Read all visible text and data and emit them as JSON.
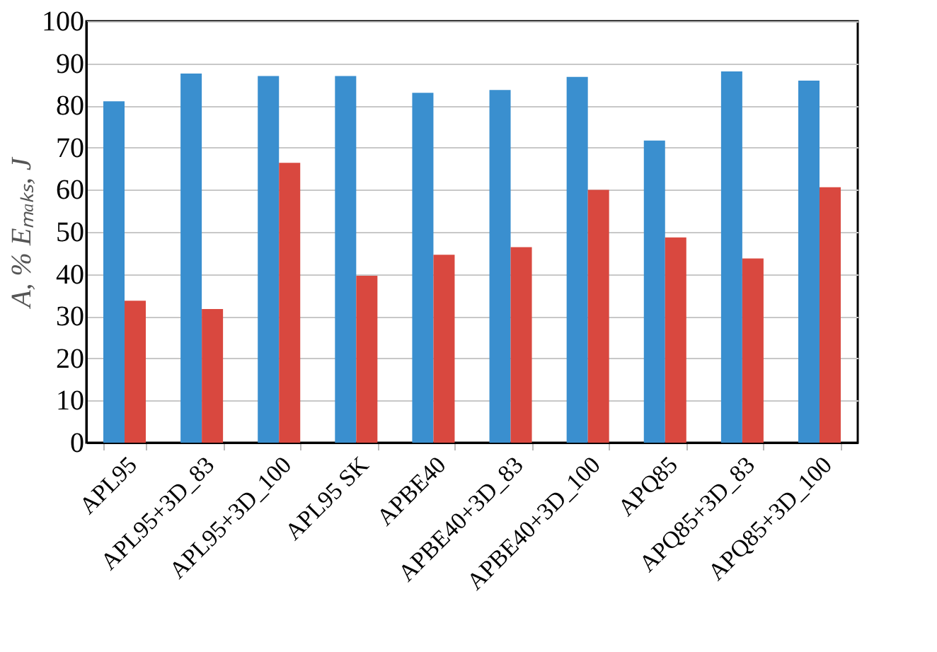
{
  "chart_data": {
    "type": "bar",
    "ylabel": "A, %   Eₘₐₖₛ, J",
    "categories": [
      "APL95",
      "APL95+3D_83",
      "APL95+3D_100",
      "APL95 SK",
      "APBE40",
      "APBE40+3D_83",
      "APBE40+3D_100",
      "APQ85",
      "APQ85+3D_83",
      "APQ85+3D_100"
    ],
    "series": [
      {
        "color": "#3a8fcf",
        "values": [
          81,
          87.6,
          87,
          87,
          83,
          83.7,
          86.8,
          71.7,
          88.1,
          85.9
        ]
      },
      {
        "color": "#d9483f",
        "values": [
          33.7,
          31.7,
          66.4,
          39.6,
          44.6,
          46.4,
          60,
          48.7,
          43.7,
          60.6
        ]
      }
    ],
    "ylim": [
      0,
      100
    ],
    "yticks": [
      0,
      10,
      20,
      30,
      40,
      50,
      60,
      70,
      80,
      90,
      100
    ],
    "grid": "y",
    "legend": false
  }
}
